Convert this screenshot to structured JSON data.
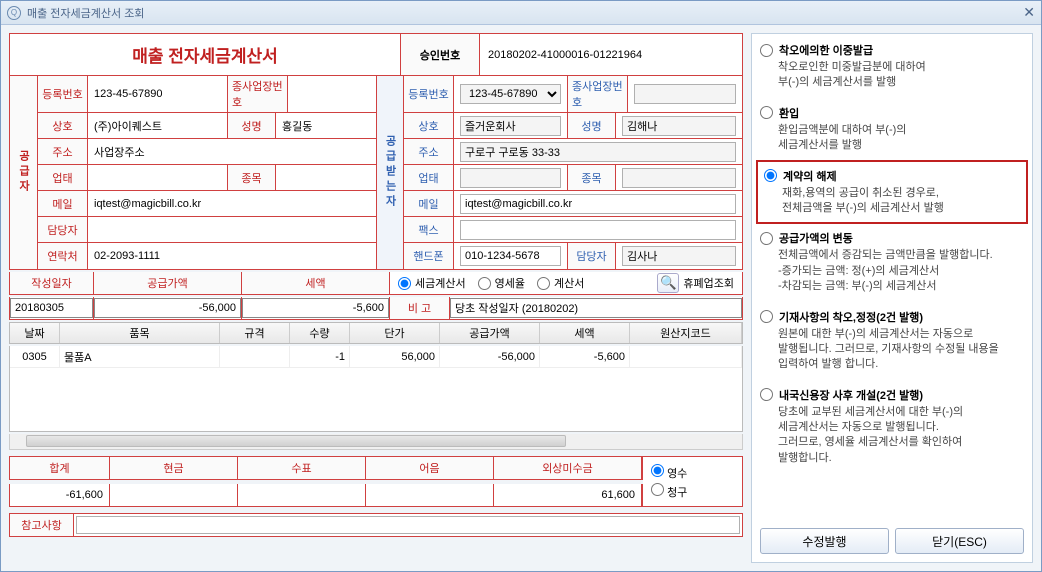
{
  "window": {
    "title": "매출 전자세금계산서 조회"
  },
  "doc": {
    "title": "매출 전자세금계산서",
    "approval_label": "승인번호",
    "approval_no": "20180202-41000016-01221964"
  },
  "supplier_label": "공급자",
  "receiver_label": "공급받는자",
  "labels": {
    "reg_no": "등록번호",
    "sub_biz": "종사업장번호",
    "name": "상호",
    "ceo": "성명",
    "addr": "주소",
    "biz_type": "업태",
    "biz_item": "종목",
    "email": "메일",
    "fax": "팩스",
    "manager": "담당자",
    "contact": "연락처",
    "mobile": "핸드폰"
  },
  "supplier": {
    "reg_no": "123-45-67890",
    "sub_biz": "",
    "name": "(주)아이퀘스트",
    "ceo": "홍길동",
    "addr": "사업장주소",
    "biz_type": "",
    "biz_item": "",
    "email": "iqtest@magicbill.co.kr",
    "manager": "",
    "contact": "02-2093-1111"
  },
  "receiver": {
    "reg_no": "123-45-67890",
    "sub_biz": "",
    "name": "즐거운회사",
    "ceo": "김해나",
    "addr": "구로구 구로동 33-33",
    "biz_type": "",
    "biz_item": "",
    "email": "iqtest@magicbill.co.kr",
    "fax": "",
    "mobile": "010-1234-5678",
    "manager": "김사나"
  },
  "totals": {
    "date_label": "작성일자",
    "supply_label": "공급가액",
    "tax_label": "세액",
    "date": "20180305",
    "supply": "-56,000",
    "tax": "-5,600",
    "type_tax": "세금계산서",
    "type_zero": "영세율",
    "type_calc": "계산서",
    "lookup": "휴폐업조회",
    "remark_label": "비 고",
    "remark": "당초 작성일자 (20180202)"
  },
  "items": {
    "headers": [
      "날짜",
      "품목",
      "규격",
      "수량",
      "단가",
      "공급가액",
      "세액",
      "원산지코드"
    ],
    "rows": [
      {
        "date": "0305",
        "name": "물품A",
        "spec": "",
        "qty": "-1",
        "price": "56,000",
        "supply": "-56,000",
        "tax": "-5,600",
        "origin": ""
      }
    ]
  },
  "sum": {
    "labels": [
      "합계",
      "현금",
      "수표",
      "어음",
      "외상미수금"
    ],
    "total": "-61,600",
    "cash": "",
    "check": "",
    "note": "",
    "credit": "61,600",
    "collect_receipt": "영수",
    "collect_charge": "청구"
  },
  "note_label": "참고사항",
  "options": [
    {
      "key": "dup",
      "title": "착오에의한 이중발급",
      "desc": "착오로인한 미중발급분에 대하여\n부(-)의 세금계산서를 발행"
    },
    {
      "key": "refund",
      "title": "환입",
      "desc": "환입금액분에 대하여 부(-)의\n세금계산서를 발행"
    },
    {
      "key": "cancel",
      "title": "계약의 해제",
      "desc": "재화,용역의 공급이 취소된 경우로,\n전체금액을 부(-)의 세금계산서 발행",
      "selected": true
    },
    {
      "key": "change",
      "title": "공급가액의 변동",
      "desc": "전체금액에서 증감되는 금액만큼을 발행합니다.\n-증가되는 금액: 정(+)의 세금계산서\n-차감되는 금액: 부(-)의 세금계산서"
    },
    {
      "key": "correct",
      "title": "기재사항의 착오,정정(2건 발행)",
      "desc": "원본에 대한 부(-)의 세금계산서는 자동으로\n발행됩니다. 그러므로, 기재사항의 수정될 내용을\n입력하여 발행 합니다."
    },
    {
      "key": "lc",
      "title": "내국신용장 사후 개설(2건 발행)",
      "desc": "당초에 교부된 세금계산서에 대한 부(-)의\n세금계산서는 자동으로 발행됩니다.\n그러므로, 영세율 세금계산서를 확인하여\n발행합니다."
    }
  ],
  "buttons": {
    "issue": "수정발행",
    "close": "닫기(ESC)"
  }
}
